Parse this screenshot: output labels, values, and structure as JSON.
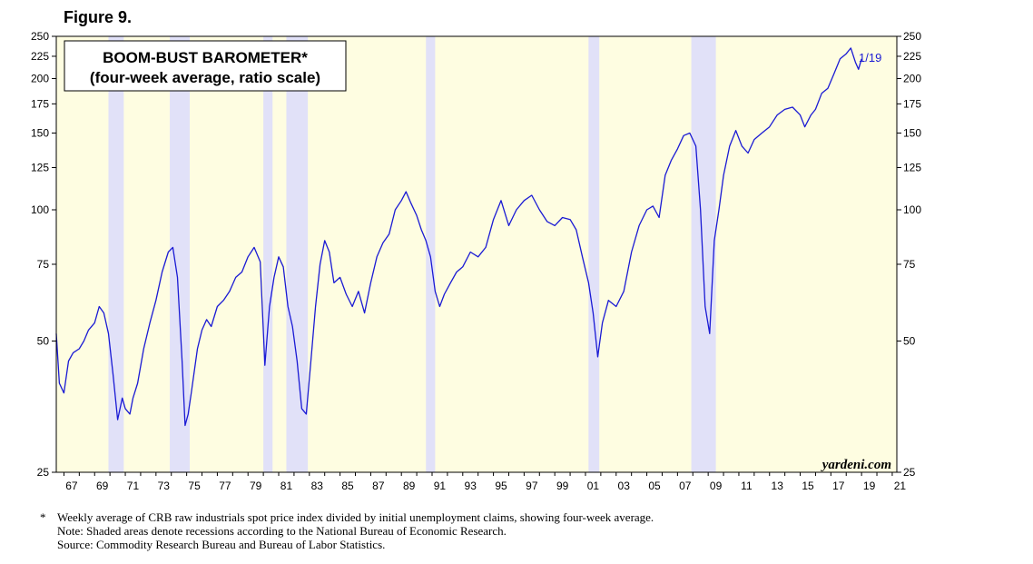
{
  "figure_label": "Figure 9.",
  "chart_data": {
    "type": "line",
    "title": "BOOM-BUST BAROMETER*",
    "subtitle": "(four-week average, ratio scale)",
    "scale": "log",
    "ylim": [
      25,
      250
    ],
    "yticks": [
      25,
      50,
      75,
      100,
      125,
      150,
      175,
      200,
      225,
      250
    ],
    "xlim": [
      1966.5,
      2021.3
    ],
    "xticks": [
      "67",
      "69",
      "71",
      "73",
      "75",
      "77",
      "79",
      "81",
      "83",
      "85",
      "87",
      "89",
      "91",
      "93",
      "95",
      "97",
      "99",
      "01",
      "03",
      "05",
      "07",
      "09",
      "11",
      "13",
      "15",
      "17",
      "19",
      "21"
    ],
    "xtick_years": [
      1967,
      1969,
      1971,
      1973,
      1975,
      1977,
      1979,
      1981,
      1983,
      1985,
      1987,
      1989,
      1991,
      1993,
      1995,
      1997,
      1999,
      2001,
      2003,
      2005,
      2007,
      2009,
      2011,
      2013,
      2015,
      2017,
      2019,
      2021
    ],
    "recessions": [
      [
        1969.9,
        1970.9
      ],
      [
        1973.9,
        1975.2
      ],
      [
        1980.0,
        1980.6
      ],
      [
        1981.5,
        1982.9
      ],
      [
        1990.6,
        1991.2
      ],
      [
        2001.2,
        2001.9
      ],
      [
        2007.9,
        2009.5
      ]
    ],
    "annotation": "1/19",
    "watermark": "yardeni.com",
    "series": [
      {
        "name": "Boom-Bust Barometer",
        "color": "#1a1ad4",
        "x": [
          1966.5,
          1966.7,
          1967.0,
          1967.3,
          1967.6,
          1968.0,
          1968.3,
          1968.6,
          1969.0,
          1969.3,
          1969.6,
          1969.9,
          1970.2,
          1970.5,
          1970.8,
          1971.0,
          1971.3,
          1971.5,
          1971.8,
          1972.2,
          1972.6,
          1973.0,
          1973.4,
          1973.8,
          1974.1,
          1974.4,
          1974.7,
          1974.9,
          1975.1,
          1975.3,
          1975.7,
          1976.0,
          1976.3,
          1976.6,
          1977.0,
          1977.4,
          1977.8,
          1978.2,
          1978.6,
          1979.0,
          1979.4,
          1979.8,
          1980.1,
          1980.4,
          1980.7,
          1981.0,
          1981.3,
          1981.6,
          1981.9,
          1982.2,
          1982.5,
          1982.8,
          1983.1,
          1983.4,
          1983.7,
          1984.0,
          1984.3,
          1984.6,
          1985.0,
          1985.4,
          1985.8,
          1986.2,
          1986.6,
          1987.0,
          1987.4,
          1987.8,
          1988.2,
          1988.6,
          1989.0,
          1989.3,
          1989.6,
          1990.0,
          1990.3,
          1990.6,
          1990.9,
          1991.2,
          1991.5,
          1991.8,
          1992.2,
          1992.6,
          1993.0,
          1993.5,
          1994.0,
          1994.5,
          1995.0,
          1995.5,
          1996.0,
          1996.5,
          1997.0,
          1997.5,
          1998.0,
          1998.5,
          1999.0,
          1999.5,
          2000.0,
          2000.4,
          2000.8,
          2001.2,
          2001.5,
          2001.8,
          2002.1,
          2002.5,
          2003.0,
          2003.5,
          2004.0,
          2004.5,
          2005.0,
          2005.4,
          2005.8,
          2006.2,
          2006.6,
          2007.0,
          2007.4,
          2007.8,
          2008.2,
          2008.5,
          2008.8,
          2009.1,
          2009.4,
          2009.7,
          2010.0,
          2010.4,
          2010.8,
          2011.2,
          2011.6,
          2012.0,
          2012.5,
          2013.0,
          2013.5,
          2014.0,
          2014.5,
          2015.0,
          2015.3,
          2015.7,
          2016.0,
          2016.4,
          2016.8,
          2017.2,
          2017.6,
          2018.0,
          2018.3,
          2018.6,
          2018.8,
          2019.0
        ],
        "values": [
          52,
          40,
          38,
          45,
          47,
          48,
          50,
          53,
          55,
          60,
          58,
          52,
          42,
          33,
          37,
          35,
          34,
          37,
          40,
          48,
          55,
          62,
          72,
          80,
          82,
          70,
          45,
          32,
          34,
          38,
          48,
          53,
          56,
          54,
          60,
          62,
          65,
          70,
          72,
          78,
          82,
          76,
          44,
          60,
          70,
          78,
          74,
          60,
          54,
          45,
          35,
          34,
          45,
          60,
          75,
          85,
          80,
          68,
          70,
          64,
          60,
          65,
          58,
          68,
          78,
          84,
          88,
          100,
          105,
          110,
          104,
          97,
          90,
          85,
          78,
          65,
          60,
          64,
          68,
          72,
          74,
          80,
          78,
          82,
          95,
          105,
          92,
          100,
          105,
          108,
          100,
          94,
          92,
          96,
          95,
          90,
          78,
          68,
          58,
          46,
          55,
          62,
          60,
          65,
          80,
          92,
          100,
          102,
          96,
          120,
          130,
          138,
          148,
          150,
          140,
          100,
          60,
          52,
          85,
          100,
          120,
          140,
          152,
          140,
          135,
          145,
          150,
          155,
          165,
          170,
          172,
          165,
          155,
          165,
          170,
          185,
          190,
          205,
          222,
          228,
          235,
          218,
          210,
          222
        ]
      }
    ]
  }
}
